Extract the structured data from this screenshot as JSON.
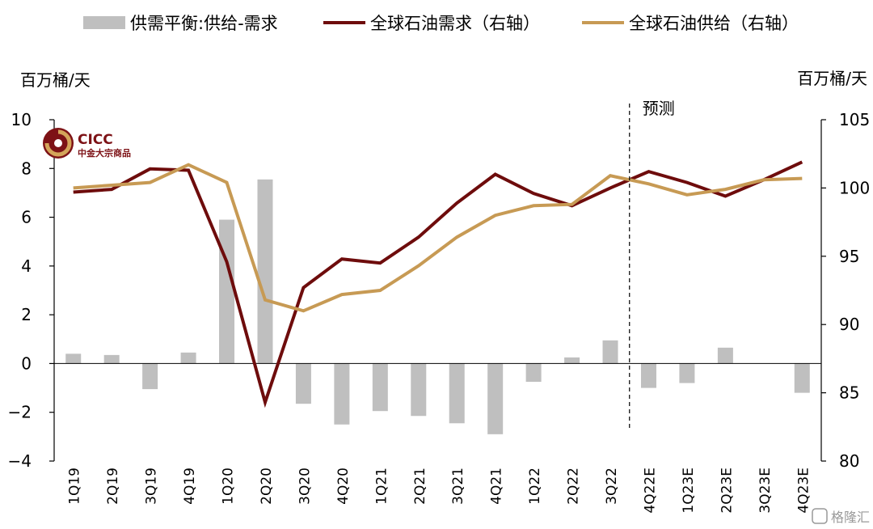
{
  "chart_data": {
    "type": "bar+line",
    "categories": [
      "1Q19",
      "2Q19",
      "3Q19",
      "4Q19",
      "1Q20",
      "2Q20",
      "3Q20",
      "4Q20",
      "1Q21",
      "2Q21",
      "3Q21",
      "4Q21",
      "1Q22",
      "2Q22",
      "3Q22",
      "4Q22E",
      "1Q23E",
      "2Q23E",
      "3Q23E",
      "4Q23E"
    ],
    "bar_series": {
      "name": "供需平衡:供给-需求",
      "axis": "left",
      "color": "#bfbfbf",
      "values": [
        0.4,
        0.35,
        -1.05,
        0.45,
        5.9,
        7.55,
        -1.65,
        -2.5,
        -1.95,
        -2.15,
        -2.45,
        -2.9,
        -0.75,
        0.25,
        0.95,
        -1.0,
        -0.8,
        0.65,
        0.0,
        -1.2
      ]
    },
    "line_series": [
      {
        "name": "全球石油需求（右轴）",
        "axis": "right",
        "color": "#6e0c0c",
        "values": [
          99.7,
          99.9,
          101.4,
          101.3,
          94.6,
          84.3,
          92.7,
          94.8,
          94.5,
          96.4,
          98.9,
          101.0,
          99.6,
          98.7,
          100.0,
          101.2,
          100.4,
          99.4,
          100.6,
          101.9
        ]
      },
      {
        "name": "全球石油供给（右轴）",
        "axis": "right",
        "color": "#c79a54",
        "values": [
          100.0,
          100.2,
          100.4,
          101.7,
          100.4,
          91.8,
          91.0,
          92.2,
          92.5,
          94.3,
          96.4,
          98.0,
          98.7,
          98.8,
          100.9,
          100.3,
          99.5,
          99.9,
          100.6,
          100.7
        ]
      }
    ],
    "left_axis": {
      "label": "百万桶/天",
      "ylim": [
        -4,
        10
      ],
      "ticks": [
        -4,
        -2,
        0,
        2,
        4,
        6,
        8,
        10
      ]
    },
    "right_axis": {
      "label": "百万桶/天",
      "ylim": [
        80,
        105
      ],
      "ticks": [
        80,
        85,
        90,
        95,
        100,
        105
      ]
    },
    "forecast_start_index": 15,
    "forecast_label": "预测",
    "legend_position": "top",
    "grid": false
  },
  "logo": {
    "name": "CICC",
    "subtitle": "中金大宗商品"
  },
  "watermark": "格隆汇"
}
